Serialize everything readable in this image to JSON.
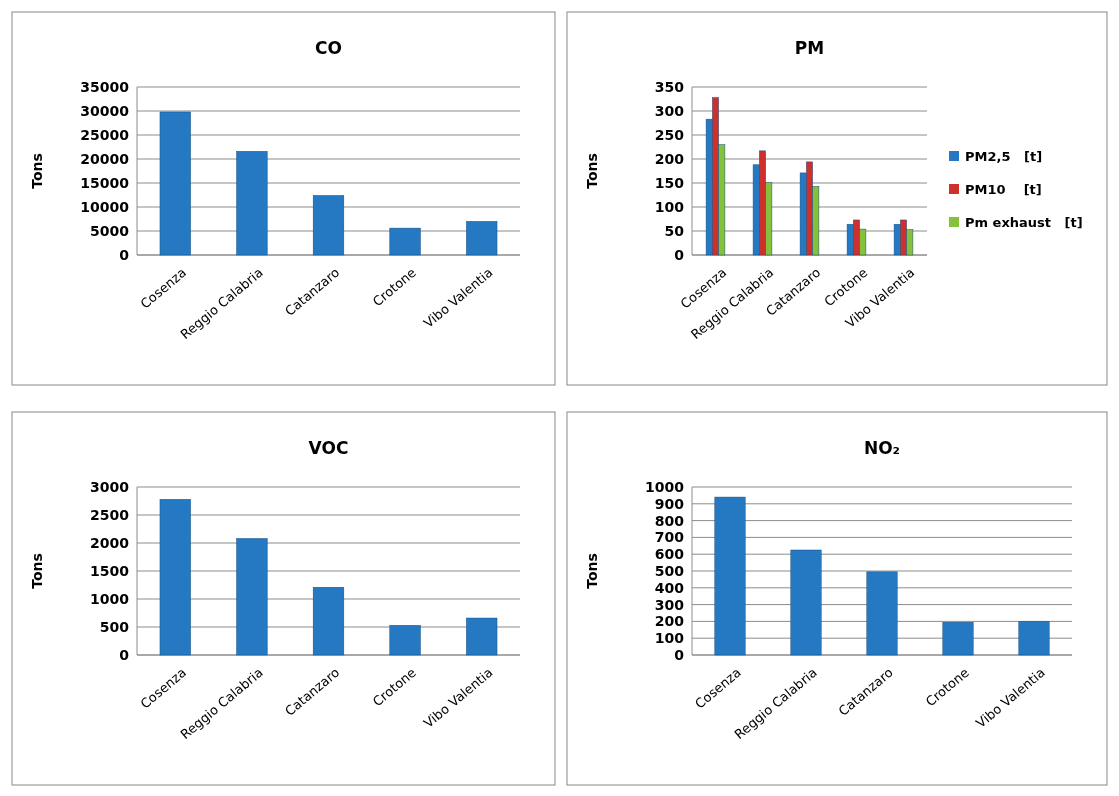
{
  "chart_data": [
    {
      "type": "bar",
      "title": "CO",
      "ylabel": "Tons",
      "categories": [
        "Cosenza",
        "Reggio Calabria",
        "Catanzaro",
        "Crotone",
        "Vibo Valentia"
      ],
      "values": [
        29800,
        21600,
        12400,
        5600,
        7000
      ],
      "color": "#2479c2",
      "ylim": [
        0,
        35000
      ],
      "yticks": [
        0,
        5000,
        10000,
        15000,
        20000,
        25000,
        30000,
        35000
      ],
      "grid": "y",
      "legend": false
    },
    {
      "type": "bar",
      "title": "PM",
      "ylabel": "Tons",
      "categories": [
        "Cosenza",
        "Reggio Calabria",
        "Catanzaro",
        "Crotone",
        "Vibo Valentia"
      ],
      "series": [
        {
          "name": "PM2,5   [t]",
          "color": "#2479c2",
          "values": [
            283,
            188,
            171,
            64,
            64
          ]
        },
        {
          "name": "PM10    [t]",
          "color": "#d0302c",
          "values": [
            328,
            217,
            194,
            73,
            73
          ]
        },
        {
          "name": "Pm exhaust   [t]",
          "color": "#86c13a",
          "values": [
            230,
            151,
            143,
            54,
            53
          ]
        }
      ],
      "ylim": [
        0,
        350
      ],
      "yticks": [
        0,
        50,
        100,
        150,
        200,
        250,
        300,
        350
      ],
      "grid": "y",
      "legend": "right"
    },
    {
      "type": "bar",
      "title": "VOC",
      "ylabel": "Tons",
      "categories": [
        "Cosenza",
        "Reggio Calabria",
        "Catanzaro",
        "Crotone",
        "Vibo Valentia"
      ],
      "values": [
        2780,
        2080,
        1210,
        530,
        660
      ],
      "color": "#2479c2",
      "ylim": [
        0,
        3000
      ],
      "yticks": [
        0,
        500,
        1000,
        1500,
        2000,
        2500,
        3000
      ],
      "grid": "y",
      "legend": false
    },
    {
      "type": "bar",
      "title": "NO₂",
      "ylabel": "Tons",
      "categories": [
        "Cosenza",
        "Reggio Calabria",
        "Catanzaro",
        "Crotone",
        "Vibo Valentia"
      ],
      "values": [
        940,
        625,
        495,
        195,
        200
      ],
      "color": "#2479c2",
      "ylim": [
        0,
        1000
      ],
      "yticks": [
        0,
        100,
        200,
        300,
        400,
        500,
        600,
        700,
        800,
        900,
        1000
      ],
      "grid": "y",
      "legend": false
    }
  ]
}
